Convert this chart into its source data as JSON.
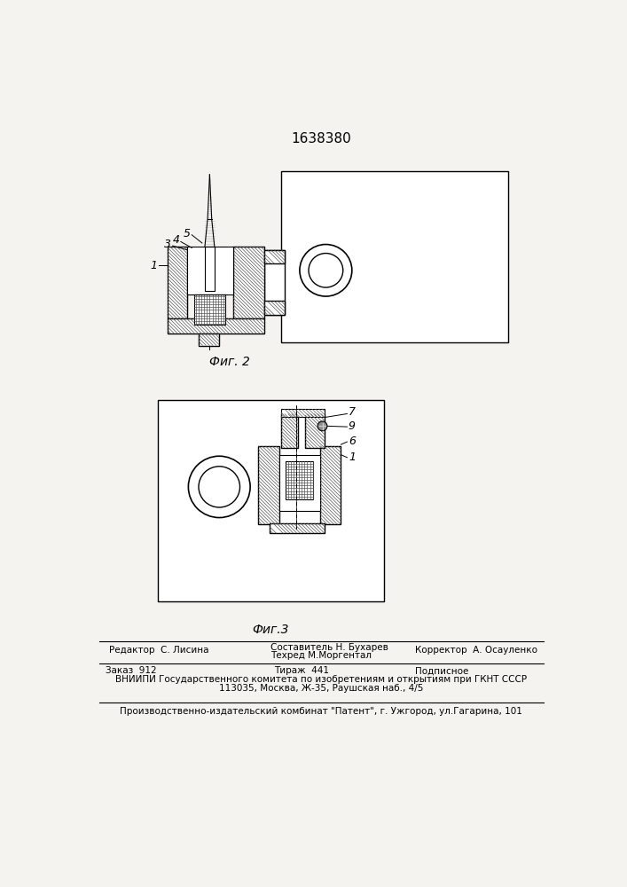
{
  "patent_number": "1638380",
  "fig2_label": "Фиг. 2",
  "fig3_label": "Фиг.3",
  "editor_line": "Редактор  С. Лисина",
  "composer_line1": "Составитель Н. Бухарев",
  "composer_line2": "Техред М.Моргентал",
  "corrector_line": "Корректор  А. Осауленко",
  "order_line": "Заказ  912",
  "circulation_line": "Тираж  441",
  "subscription_line": "Подписное",
  "vniiipi_line1": "ВНИИПИ Государственного комитета по изобретениям и открытиям при ГКНТ СССР",
  "vniiipi_line2": "113035, Москва, Ж-35, Раушская наб., 4/5",
  "publisher_line": "Производственно-издательский комбинат \"Патент\", г. Ужгород, ул.Гагарина, 101",
  "bg_color": "#f5f3ef",
  "drawing_bg": "#ffffff"
}
